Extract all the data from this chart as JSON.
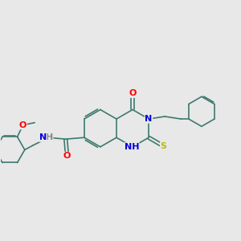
{
  "bg_color": "#e8e8e8",
  "bond_color": "#3d7a6e",
  "atom_colors": {
    "O": "#ff0000",
    "N": "#0000dd",
    "S": "#bbbb00",
    "H": "#888888",
    "C": "#3d7a6e"
  },
  "font_size_large": 8.0,
  "font_size_small": 7.5,
  "lw": 1.2,
  "doffset": 0.055,
  "ring_r": 0.6,
  "small_ring_r": 0.48
}
